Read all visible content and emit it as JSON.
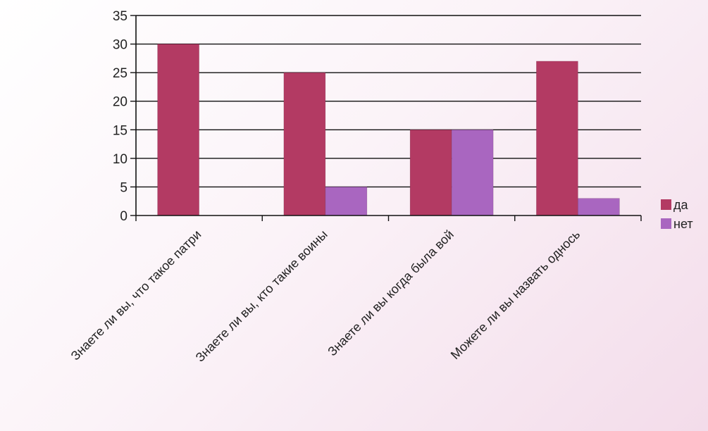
{
  "chart_data": {
    "type": "bar",
    "categories": [
      "Знаете ли вы, что такое патри",
      "Знаете ли вы, кто такие воины",
      "Знаете ли вы когда  была  вой",
      "Можете ли вы назвать однось"
    ],
    "series": [
      {
        "name": "да",
        "values": [
          30,
          25,
          15,
          27
        ],
        "color": "#b33a63"
      },
      {
        "name": "нет",
        "values": [
          0,
          5,
          15,
          3
        ],
        "color": "#a966c0"
      }
    ],
    "ylim": [
      0,
      35
    ],
    "yticks": [
      0,
      5,
      10,
      15,
      20,
      25,
      30,
      35
    ],
    "grid": true,
    "legend": "right",
    "title": "",
    "xlabel": "",
    "ylabel": ""
  }
}
